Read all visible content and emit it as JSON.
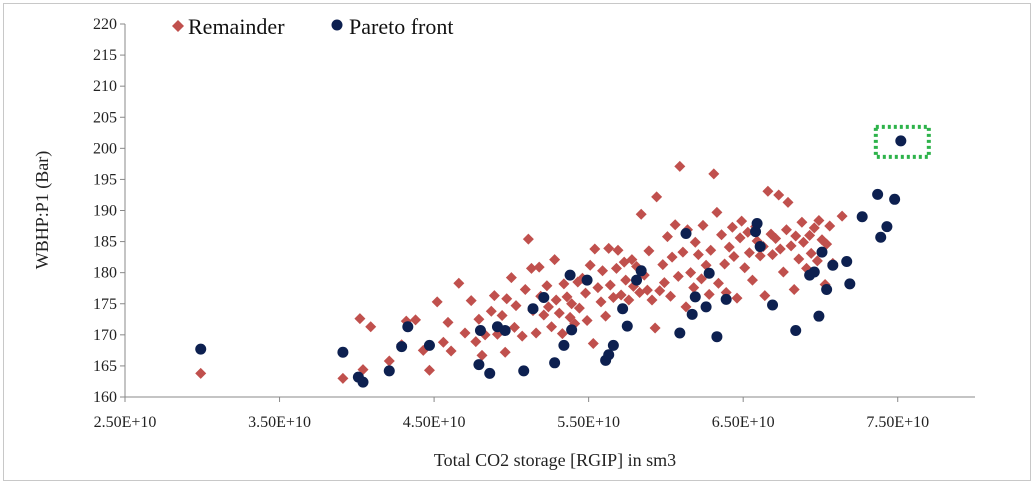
{
  "chart_data": {
    "type": "scatter",
    "title": "",
    "xlabel": "Total CO2 storage [RGIP] in sm3",
    "ylabel": "WBHP:P1  (Bar)",
    "xlim": [
      25000000000.0,
      80000000000.0
    ],
    "ylim": [
      160,
      220
    ],
    "x_ticks": [
      25000000000.0,
      35000000000.0,
      45000000000.0,
      55000000000.0,
      65000000000.0,
      75000000000.0
    ],
    "x_tick_labels": [
      "2.50E+10",
      "3.50E+10",
      "4.50E+10",
      "5.50E+10",
      "6.50E+10",
      "7.50E+10"
    ],
    "y_ticks": [
      160,
      165,
      170,
      175,
      180,
      185,
      190,
      195,
      200,
      205,
      210,
      215,
      220
    ],
    "y_tick_labels": [
      "160",
      "165",
      "170",
      "175",
      "180",
      "185",
      "190",
      "195",
      "200",
      "205",
      "210",
      "215",
      "220"
    ],
    "grid": false,
    "legend_position": "top-left",
    "highlight": {
      "series": "Pareto front",
      "x": 75200000000.0,
      "y": 201.2,
      "style": "green dotted box"
    },
    "series": [
      {
        "name": "Remainder",
        "marker": "diamond",
        "color": "#c0504d",
        "points": [
          [
            29900000000.0,
            163.8
          ],
          [
            39100000000.0,
            163.0
          ],
          [
            40400000000.0,
            164.4
          ],
          [
            40200000000.0,
            172.6
          ],
          [
            40900000000.0,
            171.3
          ],
          [
            42100000000.0,
            165.8
          ],
          [
            42900000000.0,
            168.4
          ],
          [
            43200000000.0,
            172.2
          ],
          [
            43800000000.0,
            172.4
          ],
          [
            44300000000.0,
            167.5
          ],
          [
            44700000000.0,
            164.3
          ],
          [
            45200000000.0,
            175.3
          ],
          [
            45600000000.0,
            168.8
          ],
          [
            45900000000.0,
            172.0
          ],
          [
            46100000000.0,
            167.4
          ],
          [
            46600000000.0,
            178.3
          ],
          [
            47000000000.0,
            170.3
          ],
          [
            47400000000.0,
            175.5
          ],
          [
            47700000000.0,
            168.9
          ],
          [
            47900000000.0,
            172.5
          ],
          [
            48100000000.0,
            166.7
          ],
          [
            48300000000.0,
            170.0
          ],
          [
            48700000000.0,
            173.8
          ],
          [
            48900000000.0,
            176.3
          ],
          [
            49100000000.0,
            170.1
          ],
          [
            49400000000.0,
            173.1
          ],
          [
            49600000000.0,
            167.2
          ],
          [
            49700000000.0,
            175.8
          ],
          [
            50000000000.0,
            179.2
          ],
          [
            50200000000.0,
            171.2
          ],
          [
            50300000000.0,
            174.7
          ],
          [
            50700000000.0,
            169.8
          ],
          [
            50900000000.0,
            177.3
          ],
          [
            51100000000.0,
            185.4
          ],
          [
            51300000000.0,
            180.7
          ],
          [
            51400000000.0,
            173.9
          ],
          [
            51600000000.0,
            170.3
          ],
          [
            51800000000.0,
            180.9
          ],
          [
            51900000000.0,
            176.2
          ],
          [
            52100000000.0,
            173.2
          ],
          [
            52300000000.0,
            177.9
          ],
          [
            52400000000.0,
            174.5
          ],
          [
            52600000000.0,
            171.3
          ],
          [
            52800000000.0,
            182.1
          ],
          [
            52900000000.0,
            175.6
          ],
          [
            53100000000.0,
            173.5
          ],
          [
            53300000000.0,
            170.2
          ],
          [
            53400000000.0,
            178.2
          ],
          [
            53600000000.0,
            176.1
          ],
          [
            53800000000.0,
            172.8
          ],
          [
            53900000000.0,
            175.0
          ],
          [
            54100000000.0,
            171.8
          ],
          [
            54300000000.0,
            178.5
          ],
          [
            54400000000.0,
            174.3
          ],
          [
            54600000000.0,
            179.1
          ],
          [
            54800000000.0,
            176.7
          ],
          [
            54900000000.0,
            172.3
          ],
          [
            55100000000.0,
            181.2
          ],
          [
            55300000000.0,
            168.6
          ],
          [
            55400000000.0,
            183.8
          ],
          [
            55600000000.0,
            177.6
          ],
          [
            55800000000.0,
            175.3
          ],
          [
            55900000000.0,
            180.3
          ],
          [
            56100000000.0,
            173.0
          ],
          [
            56300000000.0,
            183.9
          ],
          [
            56400000000.0,
            178.0
          ],
          [
            56600000000.0,
            176.0
          ],
          [
            56800000000.0,
            180.7
          ],
          [
            56900000000.0,
            183.6
          ],
          [
            57100000000.0,
            176.4
          ],
          [
            57300000000.0,
            181.7
          ],
          [
            57400000000.0,
            178.8
          ],
          [
            57600000000.0,
            175.6
          ],
          [
            57800000000.0,
            182.1
          ],
          [
            57900000000.0,
            177.8
          ],
          [
            58100000000.0,
            181.0
          ],
          [
            58300000000.0,
            176.8
          ],
          [
            58400000000.0,
            189.4
          ],
          [
            58600000000.0,
            179.6
          ],
          [
            58800000000.0,
            177.2
          ],
          [
            58900000000.0,
            183.5
          ],
          [
            59100000000.0,
            175.6
          ],
          [
            59300000000.0,
            171.1
          ],
          [
            59400000000.0,
            192.2
          ],
          [
            59600000000.0,
            177.1
          ],
          [
            59800000000.0,
            181.3
          ],
          [
            59900000000.0,
            178.4
          ],
          [
            60100000000.0,
            185.8
          ],
          [
            60300000000.0,
            176.2
          ],
          [
            60400000000.0,
            182.5
          ],
          [
            60600000000.0,
            187.7
          ],
          [
            60800000000.0,
            179.4
          ],
          [
            60900000000.0,
            197.1
          ],
          [
            61100000000.0,
            183.3
          ],
          [
            61300000000.0,
            174.5
          ],
          [
            61400000000.0,
            186.9
          ],
          [
            61600000000.0,
            180.0
          ],
          [
            61800000000.0,
            177.6
          ],
          [
            61900000000.0,
            184.9
          ],
          [
            62100000000.0,
            182.9
          ],
          [
            62300000000.0,
            179.0
          ],
          [
            62400000000.0,
            187.6
          ],
          [
            62600000000.0,
            181.2
          ],
          [
            62800000000.0,
            176.5
          ],
          [
            62900000000.0,
            183.6
          ],
          [
            63100000000.0,
            195.9
          ],
          [
            63300000000.0,
            189.7
          ],
          [
            63400000000.0,
            178.3
          ],
          [
            63600000000.0,
            186.1
          ],
          [
            63800000000.0,
            181.4
          ],
          [
            63900000000.0,
            176.8
          ],
          [
            64100000000.0,
            184.1
          ],
          [
            64300000000.0,
            187.3
          ],
          [
            64400000000.0,
            182.6
          ],
          [
            64600000000.0,
            175.9
          ],
          [
            64800000000.0,
            185.6
          ],
          [
            64900000000.0,
            188.3
          ],
          [
            65100000000.0,
            180.8
          ],
          [
            65300000000.0,
            186.5
          ],
          [
            65400000000.0,
            183.2
          ],
          [
            65600000000.0,
            178.8
          ],
          [
            65800000000.0,
            187.4
          ],
          [
            65900000000.0,
            185.1
          ],
          [
            66100000000.0,
            182.7
          ],
          [
            66300000000.0,
            184.2
          ],
          [
            66400000000.0,
            176.3
          ],
          [
            66600000000.0,
            193.1
          ],
          [
            66800000000.0,
            186.2
          ],
          [
            66900000000.0,
            182.9
          ],
          [
            67100000000.0,
            185.5
          ],
          [
            67300000000.0,
            192.5
          ],
          [
            67400000000.0,
            183.8
          ],
          [
            67600000000.0,
            180.1
          ],
          [
            67800000000.0,
            186.9
          ],
          [
            67900000000.0,
            191.3
          ],
          [
            68100000000.0,
            184.3
          ],
          [
            68300000000.0,
            177.3
          ],
          [
            68400000000.0,
            185.9
          ],
          [
            68600000000.0,
            182.2
          ],
          [
            68800000000.0,
            188.1
          ],
          [
            68900000000.0,
            184.9
          ],
          [
            69100000000.0,
            180.7
          ],
          [
            69300000000.0,
            186.0
          ],
          [
            69400000000.0,
            183.1
          ],
          [
            69600000000.0,
            187.2
          ],
          [
            69800000000.0,
            181.9
          ],
          [
            69900000000.0,
            188.4
          ],
          [
            70100000000.0,
            185.3
          ],
          [
            70300000000.0,
            178.1
          ],
          [
            70400000000.0,
            184.6
          ],
          [
            70600000000.0,
            187.5
          ],
          [
            70800000000.0,
            181.5
          ],
          [
            71400000000.0,
            189.1
          ]
        ]
      },
      {
        "name": "Pareto front",
        "marker": "circle",
        "color": "#0d2050",
        "points": [
          [
            29900000000.0,
            167.7
          ],
          [
            39100000000.0,
            167.2
          ],
          [
            40100000000.0,
            163.2
          ],
          [
            40400000000.0,
            162.4
          ],
          [
            42100000000.0,
            164.2
          ],
          [
            42900000000.0,
            168.1
          ],
          [
            43300000000.0,
            171.3
          ],
          [
            44700000000.0,
            168.3
          ],
          [
            48000000000.0,
            170.7
          ],
          [
            47900000000.0,
            165.2
          ],
          [
            48600000000.0,
            163.8
          ],
          [
            49100000000.0,
            171.3
          ],
          [
            49600000000.0,
            170.7
          ],
          [
            50800000000.0,
            164.2
          ],
          [
            51400000000.0,
            174.2
          ],
          [
            52100000000.0,
            176.0
          ],
          [
            52800000000.0,
            165.5
          ],
          [
            53400000000.0,
            168.3
          ],
          [
            53800000000.0,
            179.6
          ],
          [
            53900000000.0,
            170.8
          ],
          [
            54900000000.0,
            178.8
          ],
          [
            56100000000.0,
            165.9
          ],
          [
            56300000000.0,
            166.8
          ],
          [
            56600000000.0,
            168.3
          ],
          [
            57200000000.0,
            174.2
          ],
          [
            57500000000.0,
            171.4
          ],
          [
            58100000000.0,
            178.8
          ],
          [
            58400000000.0,
            180.3
          ],
          [
            60900000000.0,
            170.3
          ],
          [
            61300000000.0,
            186.3
          ],
          [
            61700000000.0,
            173.3
          ],
          [
            61900000000.0,
            176.1
          ],
          [
            62600000000.0,
            174.5
          ],
          [
            62800000000.0,
            179.9
          ],
          [
            63300000000.0,
            169.7
          ],
          [
            63900000000.0,
            175.7
          ],
          [
            65800000000.0,
            186.6
          ],
          [
            65900000000.0,
            187.9
          ],
          [
            66100000000.0,
            184.2
          ],
          [
            66900000000.0,
            174.8
          ],
          [
            68400000000.0,
            170.7
          ],
          [
            69300000000.0,
            179.6
          ],
          [
            69600000000.0,
            180.1
          ],
          [
            69900000000.0,
            173.0
          ],
          [
            70100000000.0,
            183.3
          ],
          [
            70400000000.0,
            177.3
          ],
          [
            70800000000.0,
            181.2
          ],
          [
            71700000000.0,
            181.8
          ],
          [
            71900000000.0,
            178.2
          ],
          [
            72700000000.0,
            189.0
          ],
          [
            73700000000.0,
            192.6
          ],
          [
            73900000000.0,
            185.7
          ],
          [
            74300000000.0,
            187.4
          ],
          [
            74800000000.0,
            191.8
          ],
          [
            75200000000.0,
            201.2
          ]
        ]
      }
    ]
  }
}
